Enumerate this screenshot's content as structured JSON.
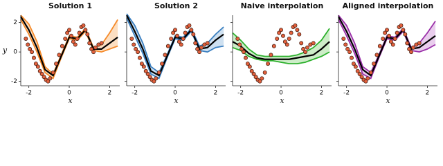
{
  "chart_data": [
    {
      "type": "line",
      "title": "Solution 1",
      "xlabel": "x",
      "ylabel": "y",
      "show_ytick_labels": true,
      "xlim": [
        -2.4,
        2.5
      ],
      "ylim": [
        -2.3,
        2.5
      ],
      "xticks": [
        -2,
        0,
        2
      ],
      "yticks": [
        -2,
        0,
        2
      ],
      "x": [
        -2.4,
        -2.0,
        -1.6,
        -1.2,
        -0.8,
        -0.4,
        0,
        0.4,
        0.8,
        1.2,
        1.6,
        2.0,
        2.4
      ],
      "band_color": "#fbd2a8",
      "series": [
        {
          "color": "#000000",
          "values": [
            2.4,
            1.5,
            0.3,
            -1.2,
            -1.6,
            -0.3,
            1.0,
            0.9,
            1.5,
            0.2,
            0.2,
            0.6,
            1.0
          ]
        },
        {
          "color": "#f58a2a",
          "values": [
            2.5,
            1.9,
            0.7,
            -1.0,
            -1.5,
            -0.2,
            1.1,
            1.0,
            1.6,
            0.3,
            0.5,
            1.3,
            2.2
          ]
        },
        {
          "color": "#f58a2a",
          "values": [
            2.2,
            1.2,
            0.0,
            -1.4,
            -1.8,
            -0.4,
            0.9,
            0.8,
            1.4,
            0.1,
            0.0,
            0.2,
            0.4
          ]
        }
      ],
      "point_color": "#e2603c",
      "points": {
        "x": [
          -2.15,
          -2.05,
          -1.95,
          -1.85,
          -1.75,
          -1.65,
          -1.55,
          -1.45,
          -1.35,
          -1.25,
          -1.15,
          -1.05,
          -0.95,
          -0.8,
          -0.65,
          -0.5,
          -0.35,
          -0.2,
          -0.1,
          0.0,
          0.1,
          0.2,
          0.3,
          0.4,
          0.5,
          0.6,
          0.7,
          0.8,
          0.9,
          1.0,
          1.1,
          1.2,
          1.3,
          1.45,
          1.6
        ],
        "y": [
          0.9,
          0.5,
          0.2,
          0.0,
          -0.4,
          -0.8,
          -1.0,
          -1.3,
          -1.5,
          -1.7,
          -1.9,
          -2.0,
          -1.8,
          -1.4,
          -0.8,
          -0.2,
          0.4,
          0.9,
          1.3,
          1.5,
          1.1,
          0.7,
          0.5,
          0.9,
          1.3,
          1.7,
          1.8,
          1.5,
          1.2,
          0.6,
          0.2,
          0.0,
          0.3,
          0.5,
          0.6
        ]
      }
    },
    {
      "type": "line",
      "title": "Solution 2",
      "xlabel": "x",
      "show_ytick_labels": false,
      "xlim": [
        -2.4,
        2.5
      ],
      "ylim": [
        -2.3,
        2.5
      ],
      "xticks": [
        -2,
        0,
        2
      ],
      "yticks": [
        -2,
        0,
        2
      ],
      "x": [
        -2.4,
        -2.0,
        -1.6,
        -1.2,
        -0.8,
        -0.4,
        0,
        0.4,
        0.8,
        1.2,
        1.6,
        2.0,
        2.4
      ],
      "band_color": "#b9d3ea",
      "series": [
        {
          "color": "#000000",
          "values": [
            2.5,
            1.4,
            0.2,
            -1.3,
            -1.6,
            -0.3,
            1.0,
            0.9,
            1.5,
            0.2,
            0.3,
            0.8,
            1.2
          ]
        },
        {
          "color": "#3a7fc0",
          "values": [
            2.6,
            1.8,
            0.6,
            -1.0,
            -1.4,
            -0.2,
            1.1,
            1.0,
            1.6,
            0.4,
            0.6,
            1.2,
            1.7
          ]
        },
        {
          "color": "#3a7fc0",
          "values": [
            2.3,
            1.1,
            -0.1,
            -1.5,
            -1.8,
            -0.4,
            0.9,
            0.8,
            1.4,
            0.1,
            0.0,
            0.3,
            0.4
          ]
        }
      ],
      "point_color": "#e2603c",
      "points": {
        "x": [
          -2.15,
          -2.05,
          -1.95,
          -1.85,
          -1.75,
          -1.65,
          -1.55,
          -1.45,
          -1.35,
          -1.25,
          -1.15,
          -1.05,
          -0.95,
          -0.8,
          -0.65,
          -0.5,
          -0.35,
          -0.2,
          -0.1,
          0.0,
          0.1,
          0.2,
          0.3,
          0.4,
          0.5,
          0.6,
          0.7,
          0.8,
          0.9,
          1.0,
          1.1,
          1.2,
          1.3,
          1.45,
          1.6
        ],
        "y": [
          0.9,
          0.5,
          0.2,
          0.0,
          -0.4,
          -0.8,
          -1.0,
          -1.3,
          -1.5,
          -1.7,
          -1.9,
          -2.0,
          -1.8,
          -1.4,
          -0.8,
          -0.2,
          0.4,
          0.9,
          1.3,
          1.5,
          1.1,
          0.7,
          0.5,
          0.9,
          1.3,
          1.7,
          1.8,
          1.5,
          1.2,
          0.6,
          0.2,
          0.0,
          0.3,
          0.5,
          0.6
        ]
      }
    },
    {
      "type": "line",
      "title": "Naive interpolation",
      "xlabel": "x",
      "show_ytick_labels": false,
      "xlim": [
        -2.4,
        2.5
      ],
      "ylim": [
        -2.3,
        2.5
      ],
      "xticks": [
        -2,
        0,
        2
      ],
      "yticks": [
        -2,
        0,
        2
      ],
      "x": [
        -2.4,
        -2.0,
        -1.6,
        -1.2,
        -0.8,
        -0.4,
        0,
        0.4,
        0.8,
        1.2,
        1.6,
        2.0,
        2.4
      ],
      "band_color": "#b8e6b0",
      "series": [
        {
          "color": "#000000",
          "values": [
            0.7,
            0.4,
            -0.1,
            -0.4,
            -0.5,
            -0.5,
            -0.5,
            -0.5,
            -0.4,
            -0.3,
            -0.2,
            0.2,
            0.7
          ]
        },
        {
          "color": "#2cb02c",
          "values": [
            1.3,
            0.8,
            0.2,
            -0.2,
            -0.3,
            -0.3,
            -0.3,
            -0.3,
            -0.2,
            0.0,
            0.3,
            0.8,
            1.6
          ]
        },
        {
          "color": "#2cb02c",
          "values": [
            0.3,
            0.1,
            -0.3,
            -0.5,
            -0.6,
            -0.6,
            -0.7,
            -0.8,
            -0.8,
            -0.7,
            -0.5,
            -0.3,
            0.0
          ]
        }
      ],
      "point_color": "#e2603c",
      "points": {
        "x": [
          -2.15,
          -2.05,
          -1.95,
          -1.85,
          -1.75,
          -1.65,
          -1.55,
          -1.45,
          -1.35,
          -1.25,
          -1.15,
          -1.05,
          -0.95,
          -0.8,
          -0.65,
          -0.5,
          -0.35,
          -0.2,
          -0.1,
          0.0,
          0.1,
          0.2,
          0.3,
          0.4,
          0.5,
          0.6,
          0.7,
          0.8,
          0.9,
          1.0,
          1.1,
          1.2,
          1.3,
          1.45,
          1.6
        ],
        "y": [
          0.9,
          0.5,
          0.2,
          0.0,
          -0.4,
          -0.8,
          -1.0,
          -1.3,
          -1.5,
          -1.7,
          -1.9,
          -2.0,
          -1.8,
          -1.4,
          -0.8,
          -0.2,
          0.4,
          0.9,
          1.3,
          1.5,
          1.1,
          0.7,
          0.5,
          0.9,
          1.3,
          1.7,
          1.8,
          1.5,
          1.2,
          0.6,
          0.2,
          0.0,
          0.3,
          0.5,
          0.6
        ]
      }
    },
    {
      "type": "line",
      "title": "Aligned interpolation",
      "xlabel": "x",
      "show_ytick_labels": false,
      "xlim": [
        -2.4,
        2.5
      ],
      "ylim": [
        -2.3,
        2.5
      ],
      "xticks": [
        -2,
        0,
        2
      ],
      "yticks": [
        -2,
        0,
        2
      ],
      "x": [
        -2.4,
        -2.0,
        -1.6,
        -1.2,
        -0.8,
        -0.4,
        0,
        0.4,
        0.8,
        1.2,
        1.6,
        2.0,
        2.4
      ],
      "band_color": "#e0b8e6",
      "series": [
        {
          "color": "#000000",
          "values": [
            2.4,
            1.4,
            0.2,
            -1.2,
            -1.6,
            -0.3,
            1.0,
            0.9,
            1.5,
            0.2,
            0.3,
            0.7,
            1.1
          ]
        },
        {
          "color": "#9a2fa8",
          "values": [
            2.5,
            1.8,
            0.6,
            -1.0,
            -1.4,
            -0.2,
            1.1,
            1.0,
            1.6,
            0.3,
            0.6,
            1.3,
            2.1
          ]
        },
        {
          "color": "#9a2fa8",
          "values": [
            2.2,
            1.1,
            -0.1,
            -1.5,
            -1.8,
            -0.4,
            0.9,
            0.8,
            1.4,
            0.1,
            0.0,
            0.2,
            0.5
          ]
        }
      ],
      "point_color": "#e2603c",
      "points": {
        "x": [
          -2.15,
          -2.05,
          -1.95,
          -1.85,
          -1.75,
          -1.65,
          -1.55,
          -1.45,
          -1.35,
          -1.25,
          -1.15,
          -1.05,
          -0.95,
          -0.8,
          -0.65,
          -0.5,
          -0.35,
          -0.2,
          -0.1,
          0.0,
          0.1,
          0.2,
          0.3,
          0.4,
          0.5,
          0.6,
          0.7,
          0.8,
          0.9,
          1.0,
          1.1,
          1.2,
          1.3,
          1.45,
          1.6
        ],
        "y": [
          0.9,
          0.5,
          0.2,
          0.0,
          -0.4,
          -0.8,
          -1.0,
          -1.3,
          -1.5,
          -1.7,
          -1.9,
          -2.0,
          -1.8,
          -1.4,
          -0.8,
          -0.2,
          0.4,
          0.9,
          1.3,
          1.5,
          1.1,
          0.7,
          0.5,
          0.9,
          1.3,
          1.7,
          1.8,
          1.5,
          1.2,
          0.6,
          0.2,
          0.0,
          0.3,
          0.5,
          0.6
        ]
      }
    }
  ]
}
